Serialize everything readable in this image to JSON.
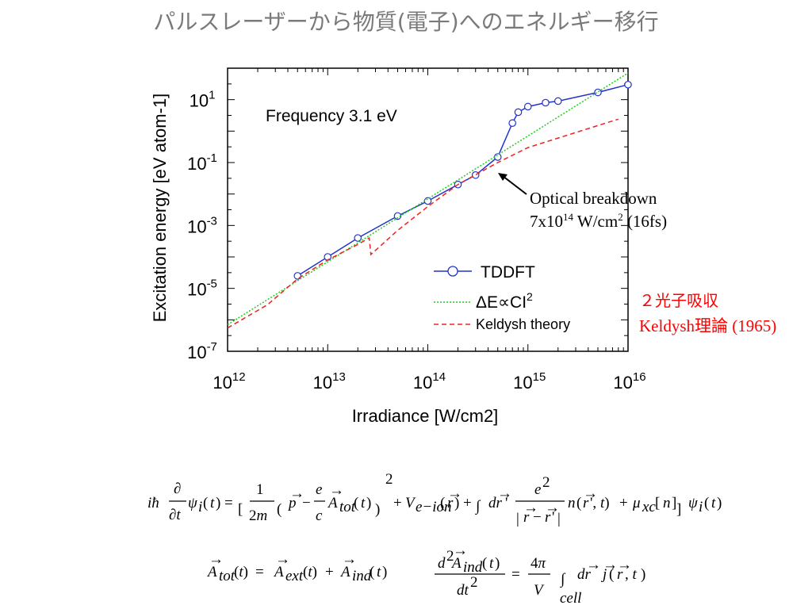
{
  "slide_title": "パルスレーザーから物質(電子)へのエネルギー移行",
  "chart_data": {
    "type": "line",
    "title": "",
    "annotation_frequency": "Frequency 3.1 eV",
    "xlabel": "Irradiance [W/cm2]",
    "ylabel": "Excitation energy [eV atom-1]",
    "x_scale": "log",
    "y_scale": "log",
    "xlim": [
      1000000000000.0,
      1e+16
    ],
    "ylim": [
      1e-07,
      100
    ],
    "x_ticks": [
      {
        "base": "10",
        "exp": "12"
      },
      {
        "base": "10",
        "exp": "13"
      },
      {
        "base": "10",
        "exp": "14"
      },
      {
        "base": "10",
        "exp": "15"
      },
      {
        "base": "10",
        "exp": "16"
      }
    ],
    "y_ticks": [
      {
        "base": "10",
        "exp": "1"
      },
      {
        "base": "10",
        "exp": "-1"
      },
      {
        "base": "10",
        "exp": "-3"
      },
      {
        "base": "10",
        "exp": "-5"
      },
      {
        "base": "10",
        "exp": "-7"
      }
    ],
    "series": [
      {
        "name": "TDDFT",
        "color": "#2233cc",
        "style": "solid-circles",
        "x": [
          5000000000000.0,
          10000000000000.0,
          20000000000000.0,
          50000000000000.0,
          100000000000000.0,
          200000000000000.0,
          300000000000000.0,
          500000000000000.0,
          700000000000000.0,
          800000000000000.0,
          1000000000000000.0,
          1500000000000000.0,
          2000000000000000.0,
          5000000000000000.0,
          1e+16
        ],
        "y": [
          2.5e-05,
          0.0001,
          0.0004,
          0.002,
          0.006,
          0.02,
          0.04,
          0.15,
          1.8,
          4,
          6,
          8,
          9,
          17,
          30
        ]
      },
      {
        "name": "ΔE∝CI2",
        "color": "#22cc22",
        "style": "dotted",
        "x": [
          1000000000000.0,
          1e+16
        ],
        "y": [
          7e-07,
          70
        ]
      },
      {
        "name": "Keldysh theory",
        "color": "#ee2222",
        "style": "dashed",
        "x": [
          1000000000000.0,
          2500000000000.0,
          5000000000000.0,
          10000000000000.0,
          20000000000000.0,
          26000000000000.0,
          27000000000000.0,
          35000000000000.0,
          50000000000000.0,
          100000000000000.0,
          200000000000000.0,
          500000000000000.0,
          1000000000000000.0,
          2000000000000000.0,
          5000000000000000.0,
          8000000000000000.0
        ],
        "y": [
          5.5e-07,
          3e-06,
          2e-05,
          8e-05,
          0.00025,
          0.0004,
          0.00012,
          0.00025,
          0.0007,
          0.004,
          0.02,
          0.1,
          0.3,
          0.6,
          1.5,
          2.4
        ]
      }
    ],
    "legend": [
      {
        "label": "TDDFT"
      },
      {
        "label_prefix": "ΔE∝CI",
        "label_sup": "2"
      },
      {
        "label": "Keldysh theory"
      }
    ],
    "legend_position": "bottom-right",
    "grid": false
  },
  "arrow_annotation": {
    "line1": "Optical breakdown",
    "line2_a": "7x10",
    "line2_sup1": "14",
    "line2_b": " W/cm",
    "line2_sup2": "2",
    "line2_c": " (16fs)"
  },
  "side_note": {
    "line1": "２光子吸収",
    "line2": "Keldysh理論 (1965)",
    "color": "#ff0000"
  },
  "equations": {
    "tddft": "iħ ∂/∂t ψi(t) = [ 1/2m ( p − e/c Atot(t) )² + Ve−ion(r) + ∫dr' e²/|r−r'| n(r',t) + μxc[n] ] ψi(t)",
    "vector_potential": "Atot(t) = Aext(t) + Aind(t)",
    "maxwell": "d²Aind(t)/dt² = 4π/V ∫cell dr j(r,t)"
  }
}
